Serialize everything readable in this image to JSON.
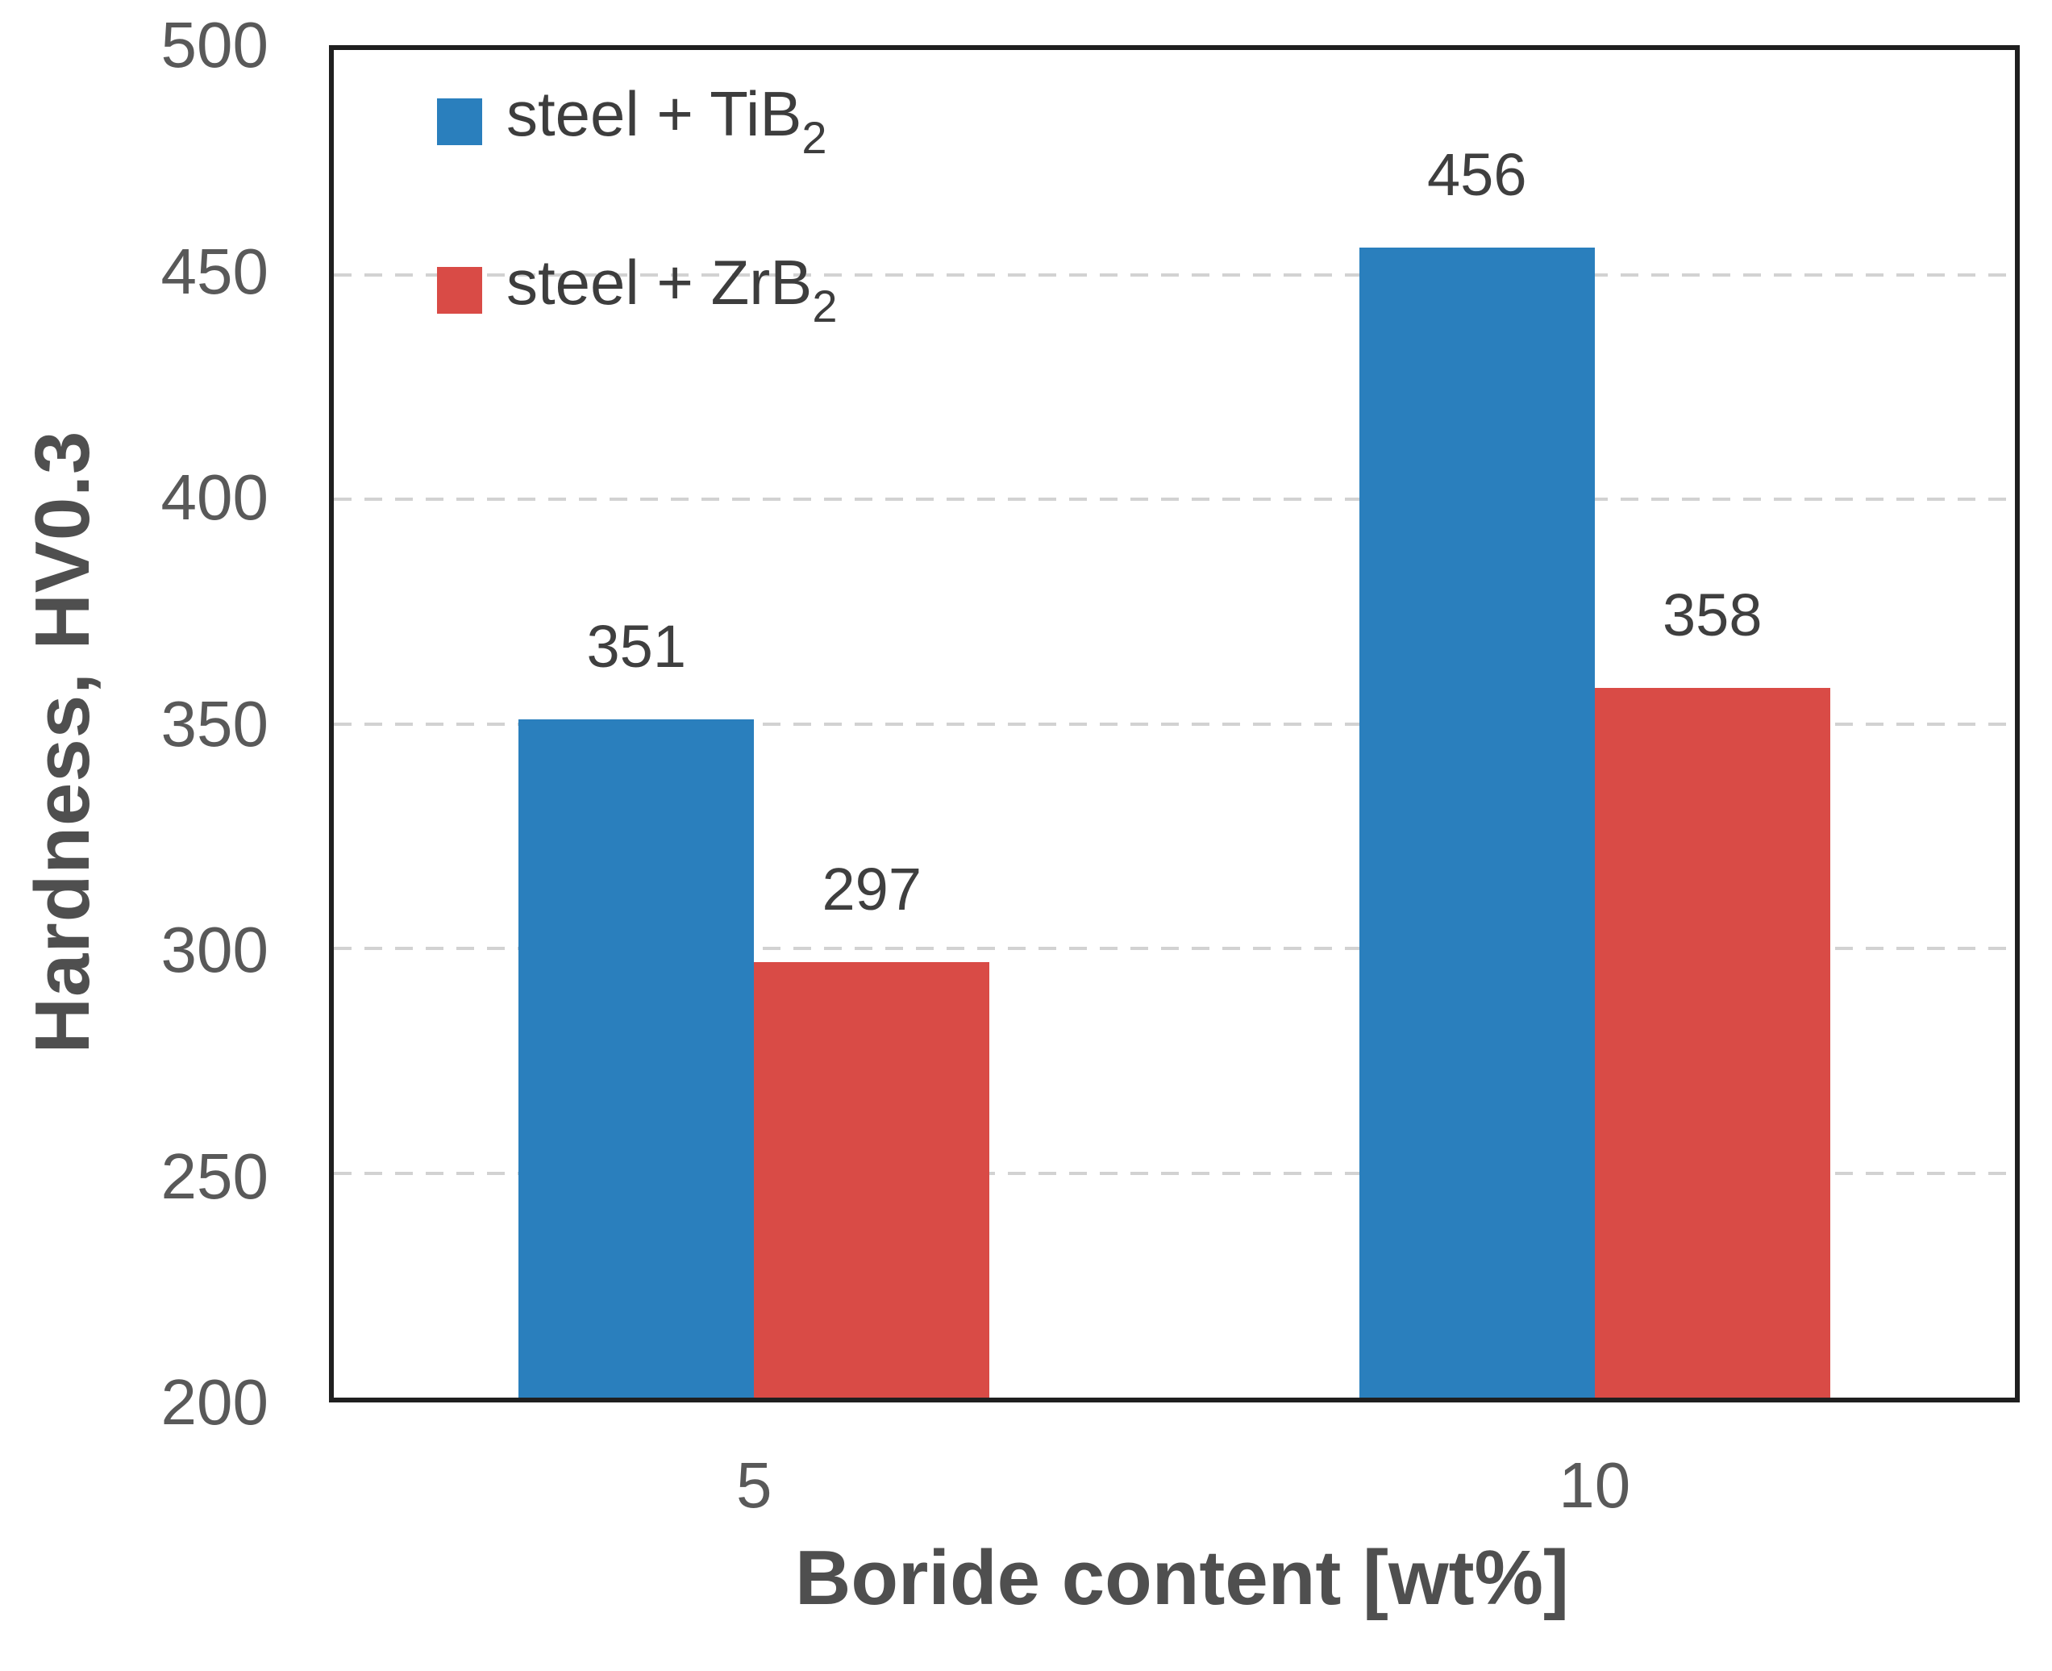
{
  "chart_data": {
    "type": "bar",
    "title": "",
    "categories": [
      "5",
      "10"
    ],
    "series": [
      {
        "name": "steel + TiB2",
        "label_base": "steel + TiB",
        "label_sub": "2",
        "color": "#2A7FBD",
        "values": [
          351,
          456
        ]
      },
      {
        "name": "steel + ZrB2",
        "label_base": "steel + ZrB",
        "label_sub": "2",
        "color": "#D94B46",
        "values": [
          297,
          358
        ]
      }
    ],
    "xlabel": "Boride content [wt%]",
    "ylabel": "Hardness, HV0.3",
    "ylim": [
      200,
      500
    ],
    "yticks": [
      200,
      250,
      300,
      350,
      400,
      450,
      500
    ],
    "grid": {
      "axis": "y",
      "style": "dashed",
      "color": "#D2D2D2"
    },
    "legend_position": "top-left-inside",
    "colors": {
      "axis_border": "#1F1F1F",
      "tick_label": "#595959",
      "axis_title": "#4F4F4F",
      "value_label": "#3F3F3F"
    }
  }
}
